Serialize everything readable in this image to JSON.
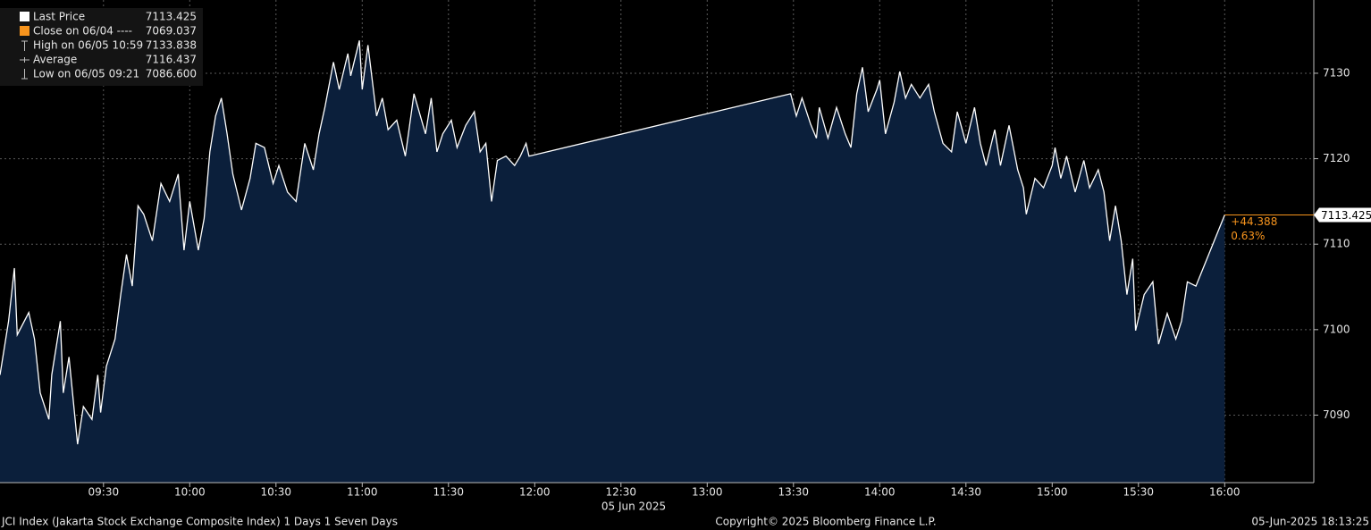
{
  "chart_data": {
    "type": "area",
    "x_label": "05 Jun 2025",
    "x": [
      "08:54",
      "08:57",
      "08:59",
      "09:00",
      "09:04",
      "09:06",
      "09:08",
      "09:11",
      "09:12",
      "09:15",
      "09:16",
      "09:18",
      "09:21",
      "09:23",
      "09:26",
      "09:28",
      "09:29",
      "09:31",
      "09:34",
      "09:36",
      "09:38",
      "09:40",
      "09:42",
      "09:44",
      "09:47",
      "09:50",
      "09:53",
      "09:56",
      "09:58",
      "10:00",
      "10:03",
      "10:05",
      "10:07",
      "10:09",
      "10:11",
      "10:13",
      "10:15",
      "10:18",
      "10:21",
      "10:23",
      "10:26",
      "10:29",
      "10:31",
      "10:34",
      "10:37",
      "10:40",
      "10:43",
      "10:45",
      "10:47",
      "10:50",
      "10:52",
      "10:55",
      "10:56",
      "10:59",
      "11:00",
      "11:02",
      "11:05",
      "11:07",
      "11:09",
      "11:12",
      "11:15",
      "11:18",
      "11:22",
      "11:24",
      "11:26",
      "11:28",
      "11:31",
      "11:33",
      "11:36",
      "11:39",
      "11:41",
      "11:43",
      "11:45",
      "11:47",
      "11:50",
      "11:53",
      "11:55",
      "11:57",
      "11:58",
      "13:29",
      "13:31",
      "13:33",
      "13:36",
      "13:38",
      "13:39",
      "13:42",
      "13:45",
      "13:48",
      "13:50",
      "13:52",
      "13:54",
      "13:56",
      "13:59",
      "14:00",
      "14:02",
      "14:05",
      "14:07",
      "14:09",
      "14:11",
      "14:14",
      "14:17",
      "14:19",
      "14:22",
      "14:25",
      "14:27",
      "14:30",
      "14:33",
      "14:35",
      "14:37",
      "14:40",
      "14:42",
      "14:45",
      "14:48",
      "14:50",
      "14:51",
      "14:54",
      "14:57",
      "15:00",
      "15:01",
      "15:03",
      "15:05",
      "15:08",
      "15:11",
      "15:13",
      "15:16",
      "15:18",
      "15:20",
      "15:22",
      "15:24",
      "15:26",
      "15:28",
      "15:29",
      "15:32",
      "15:35",
      "15:37",
      "15:40",
      "15:43",
      "15:45",
      "15:47",
      "15:50",
      "16:00"
    ],
    "series": [
      {
        "name": "Last Price",
        "legend_value": "7113.425",
        "color": "#ffffff",
        "fill": "#0b1f3b",
        "values": [
          7094.7,
          7101.0,
          7107.2,
          7099.4,
          7102.0,
          7098.9,
          7092.6,
          7089.5,
          7094.7,
          7101.0,
          7092.6,
          7096.8,
          7086.6,
          7091.0,
          7089.5,
          7094.7,
          7090.3,
          7095.7,
          7098.9,
          7104.1,
          7108.8,
          7105.1,
          7114.5,
          7113.5,
          7110.4,
          7117.1,
          7115.0,
          7118.2,
          7109.3,
          7115.0,
          7109.3,
          7113.0,
          7120.8,
          7125.0,
          7127.1,
          7122.9,
          7118.2,
          7114.0,
          7117.7,
          7121.8,
          7121.3,
          7117.1,
          7119.2,
          7116.1,
          7115.0,
          7121.8,
          7118.7,
          7122.9,
          7126.0,
          7131.3,
          7128.1,
          7132.3,
          7129.7,
          7133.838,
          7128.1,
          7133.3,
          7125.0,
          7127.1,
          7123.4,
          7124.5,
          7120.3,
          7127.6,
          7122.9,
          7127.1,
          7120.8,
          7122.9,
          7124.5,
          7121.3,
          7123.9,
          7125.5,
          7120.8,
          7121.8,
          7115.0,
          7119.8,
          7120.3,
          7119.2,
          7120.3,
          7121.8,
          7120.3,
          7127.6,
          7125.0,
          7127.1,
          7124.0,
          7122.4,
          7126.0,
          7122.4,
          7126.0,
          7122.9,
          7121.3,
          7127.6,
          7130.7,
          7125.5,
          7128.1,
          7129.2,
          7122.9,
          7126.6,
          7130.2,
          7127.1,
          7128.7,
          7127.1,
          7128.7,
          7125.5,
          7121.8,
          7120.8,
          7125.5,
          7121.8,
          7126.0,
          7121.8,
          7119.2,
          7123.4,
          7119.2,
          7123.9,
          7118.7,
          7116.6,
          7113.5,
          7117.7,
          7116.6,
          7119.2,
          7121.3,
          7117.7,
          7120.3,
          7116.1,
          7119.8,
          7116.6,
          7118.7,
          7116.1,
          7110.4,
          7114.5,
          7110.4,
          7104.1,
          7108.3,
          7099.9,
          7104.1,
          7105.6,
          7098.3,
          7101.9,
          7098.9,
          7101.0,
          7105.6,
          7105.1,
          7113.425
        ]
      }
    ],
    "legend_extra": [
      {
        "name": "Close on 06/04 ----",
        "value": "7069.037",
        "color": "#f7941d"
      },
      {
        "name": "High on 06/05 10:59",
        "value": "7133.838",
        "color": "#bbbbbb"
      },
      {
        "name": "Average",
        "value": "7116.437",
        "color": "#bbbbbb"
      },
      {
        "name": "Low on 06/05 09:21",
        "value": "7086.600",
        "color": "#bbbbbb"
      }
    ],
    "change": "+44.388",
    "change_pct": "0.63%",
    "change_color": "#f7941d",
    "xlim": [
      "08:54",
      "16:31"
    ],
    "xticks": [
      "09:30",
      "10:00",
      "10:30",
      "11:00",
      "11:30",
      "12:00",
      "12:30",
      "13:00",
      "13:30",
      "14:00",
      "14:30",
      "15:00",
      "15:30",
      "16:00"
    ],
    "ylim": [
      7082.1,
      7138.57
    ],
    "yticks": [
      7090,
      7100,
      7110,
      7120,
      7130
    ],
    "grid": true,
    "footer": {
      "left": "JCI Index (Jakarta Stock Exchange Composite Index) 1 Days 1 Seven Days",
      "center": "Copyright© 2025 Bloomberg Finance L.P.",
      "right": "05-Jun-2025 18:13:25"
    }
  }
}
